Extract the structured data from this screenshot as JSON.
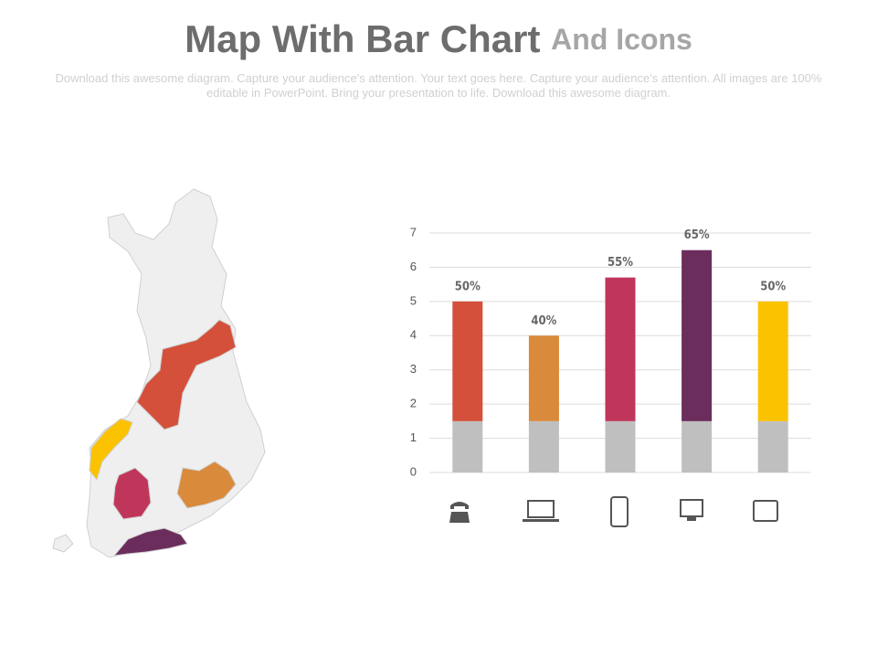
{
  "title": "Map With Bar Chart",
  "title_suffix": "And Icons",
  "subtitle": "Download this awesome diagram. Capture your audience's attention. Your text goes here. Capture your audience's attention. All images are 100% editable in PowerPoint. Bring your presentation to life. Download this awesome diagram.",
  "chart_data": {
    "type": "bar",
    "stacked": true,
    "categories": [
      null,
      null,
      null,
      null,
      null
    ],
    "series": [
      {
        "color": "#bfbfbf",
        "values": [
          1.5,
          1.5,
          1.5,
          1.5,
          1.5
        ]
      },
      {
        "colors": [
          "#d4503a",
          "#d98a3a",
          "#c0365a",
          "#6b2d5c",
          "#fbc200"
        ],
        "values": [
          3.5,
          2.5,
          4.2,
          5.0,
          3.5
        ]
      }
    ],
    "annotations": [
      "50%",
      "40%",
      "55%",
      "65%",
      "50%"
    ],
    "ylim": [
      0,
      7
    ],
    "yticks": [
      0,
      1,
      2,
      3,
      4,
      5,
      6,
      7
    ],
    "grid": true
  }
}
